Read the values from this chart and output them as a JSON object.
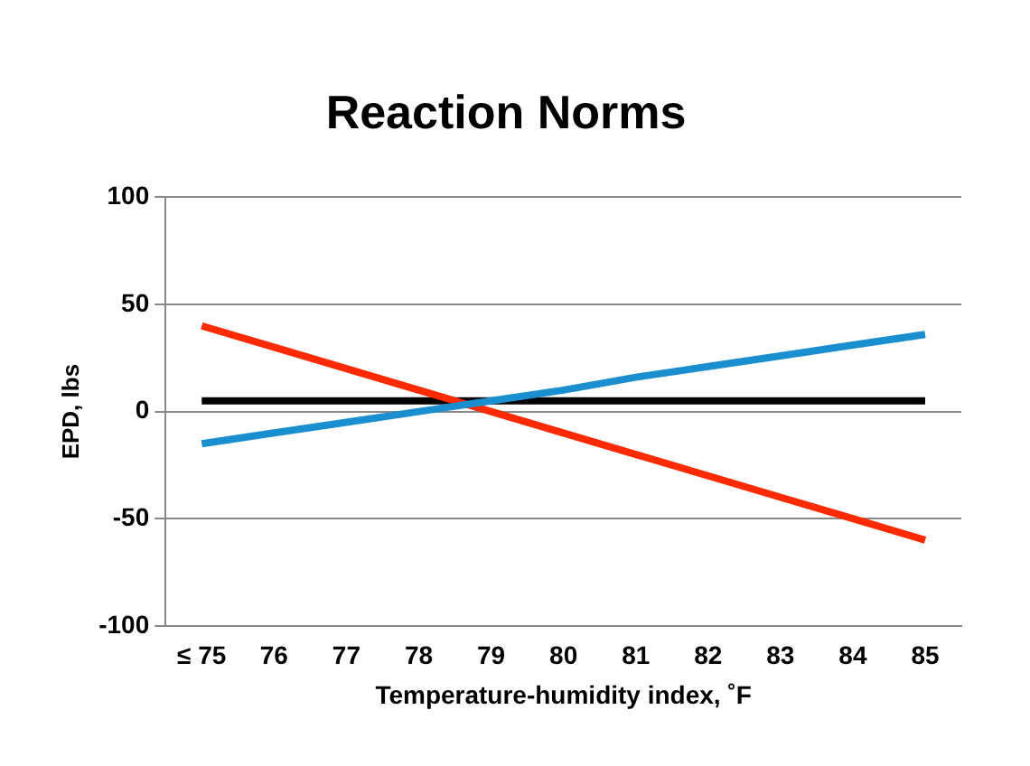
{
  "chart_data": {
    "type": "line",
    "title": "Reaction Norms",
    "xlabel": "Temperature-humidity index, ˚F",
    "ylabel": "EPD, lbs",
    "categories": [
      "≤ 75",
      "76",
      "77",
      "78",
      "79",
      "80",
      "81",
      "82",
      "83",
      "84",
      "85"
    ],
    "series": [
      {
        "color": "#1a8fd0",
        "values": [
          -15,
          -10,
          -5,
          0,
          5,
          10,
          16,
          21,
          26,
          31,
          36
        ]
      },
      {
        "color": "#ff2a00",
        "values": [
          40,
          30,
          20,
          10,
          0,
          -10,
          -20,
          -30,
          -40,
          -50,
          -60
        ]
      },
      {
        "color": "#000000",
        "values": [
          5,
          5,
          5,
          5,
          5,
          5,
          5,
          5,
          5,
          5,
          5
        ]
      }
    ],
    "ylim": [
      -100,
      100
    ],
    "yticks": [
      -100,
      -50,
      0,
      50,
      100
    ],
    "grid": "y",
    "legend": false,
    "marker": "none"
  }
}
